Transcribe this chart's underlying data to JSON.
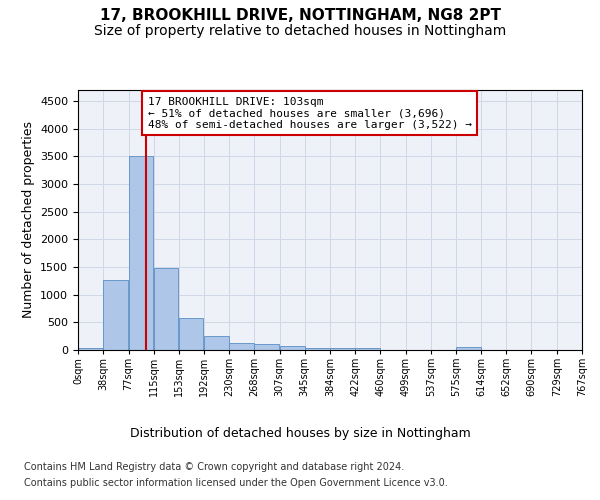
{
  "title": "17, BROOKHILL DRIVE, NOTTINGHAM, NG8 2PT",
  "subtitle": "Size of property relative to detached houses in Nottingham",
  "xlabel": "Distribution of detached houses by size in Nottingham",
  "ylabel": "Number of detached properties",
  "bin_edges": [
    0,
    38,
    77,
    115,
    153,
    192,
    230,
    268,
    307,
    345,
    384,
    422,
    460,
    499,
    537,
    575,
    614,
    652,
    690,
    729,
    767
  ],
  "bar_heights": [
    30,
    1270,
    3500,
    1480,
    580,
    255,
    135,
    110,
    70,
    45,
    30,
    30,
    0,
    0,
    0,
    60,
    0,
    0,
    0,
    0
  ],
  "bar_color": "#aec6e8",
  "bar_edge_color": "#5a8fc4",
  "grid_color": "#d0d8e8",
  "background_color": "#eef2f8",
  "vline_x": 103,
  "vline_color": "#cc0000",
  "annotation_line1": "17 BROOKHILL DRIVE: 103sqm",
  "annotation_line2": "← 51% of detached houses are smaller (3,696)",
  "annotation_line3": "48% of semi-detached houses are larger (3,522) →",
  "annotation_box_color": "#ffffff",
  "annotation_box_edgecolor": "#cc0000",
  "ylim": [
    0,
    4700
  ],
  "yticks": [
    0,
    500,
    1000,
    1500,
    2000,
    2500,
    3000,
    3500,
    4000,
    4500
  ],
  "footer_line1": "Contains HM Land Registry data © Crown copyright and database right 2024.",
  "footer_line2": "Contains public sector information licensed under the Open Government Licence v3.0.",
  "tick_labels": [
    "0sqm",
    "38sqm",
    "77sqm",
    "115sqm",
    "153sqm",
    "192sqm",
    "230sqm",
    "268sqm",
    "307sqm",
    "345sqm",
    "384sqm",
    "422sqm",
    "460sqm",
    "499sqm",
    "537sqm",
    "575sqm",
    "614sqm",
    "652sqm",
    "690sqm",
    "729sqm",
    "767sqm"
  ],
  "title_fontsize": 11,
  "subtitle_fontsize": 10,
  "ylabel_fontsize": 9,
  "xlabel_fontsize": 9,
  "ytick_fontsize": 8,
  "xtick_fontsize": 7,
  "annotation_fontsize": 8,
  "footer_fontsize": 7
}
